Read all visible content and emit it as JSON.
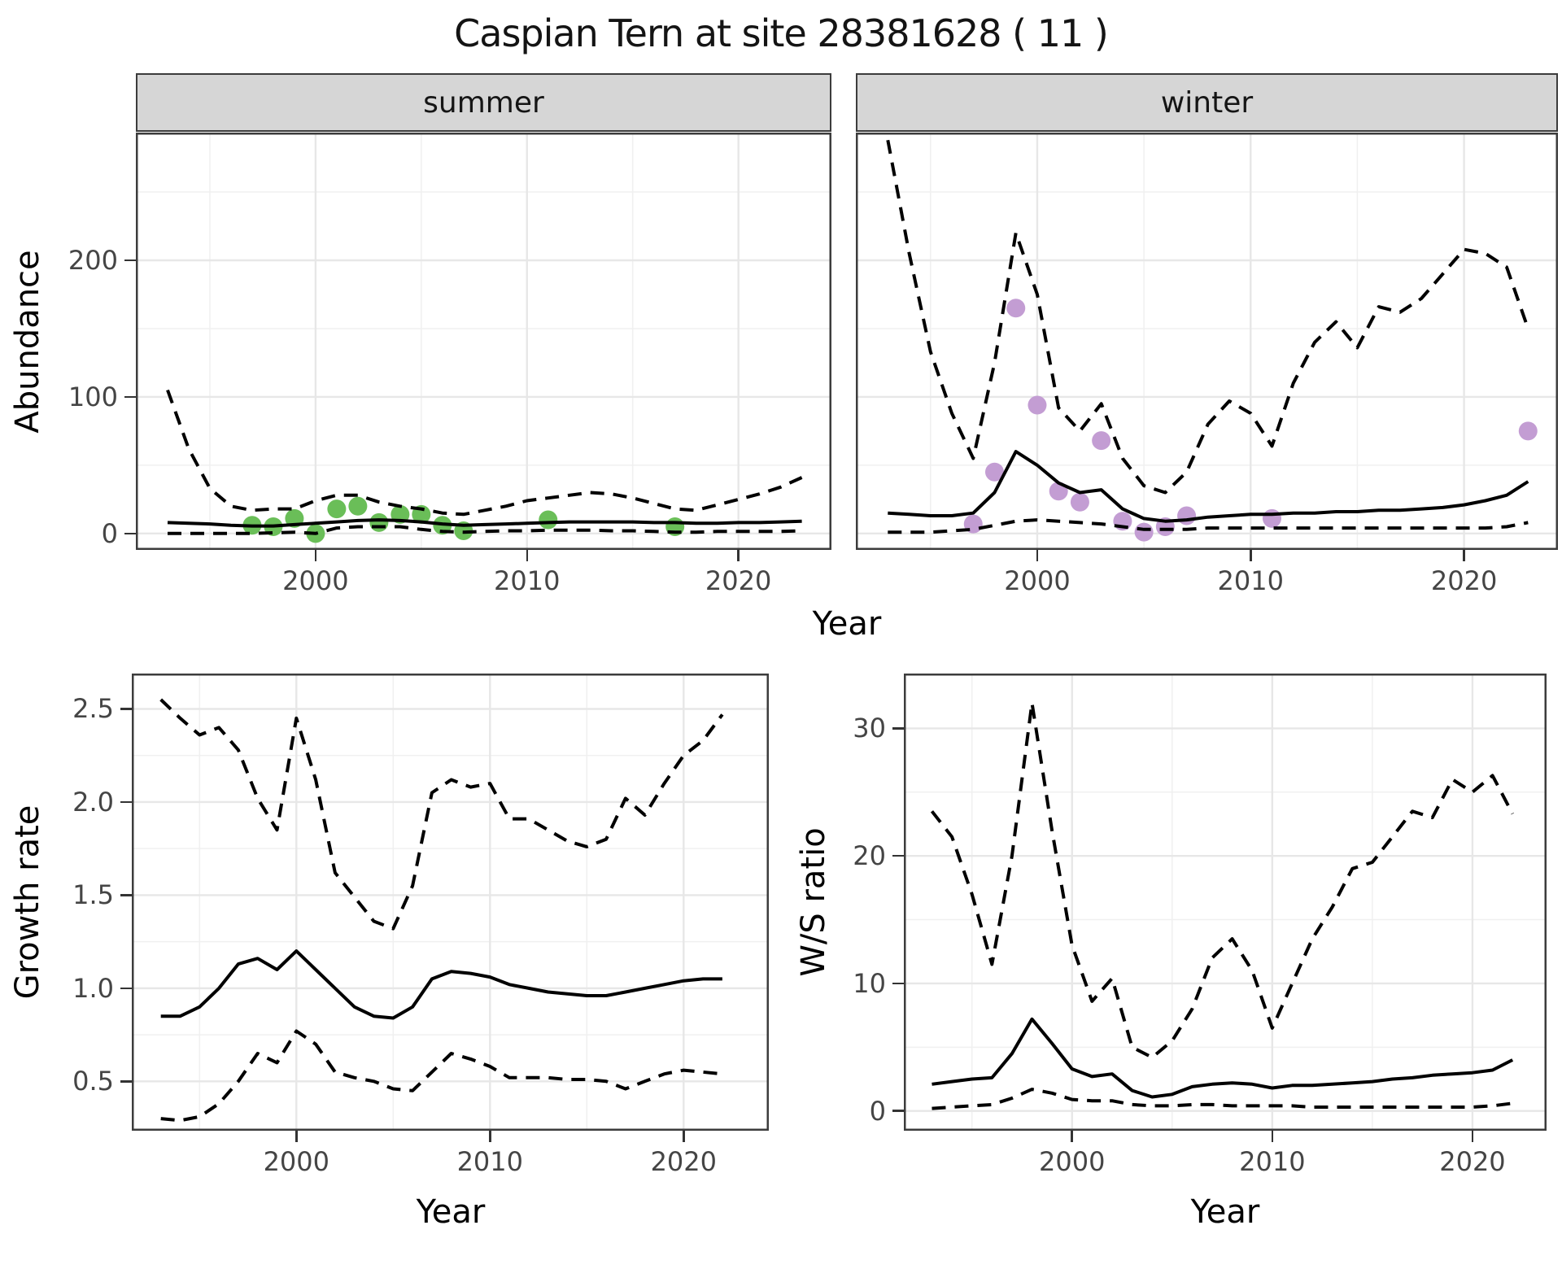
{
  "title": "Caspian Tern at site 28381628 ( 11 )",
  "colors": {
    "summer_points": "#6abe58",
    "winter_points": "#c39dd3",
    "line": "#000000",
    "grid_major": "#e7e7e7",
    "grid_minor": "#f0f0f0",
    "panel_border": "#3c3c3c",
    "strip_bg": "#d6d6d6",
    "tick_text": "#454545"
  },
  "chart_data": [
    {
      "id": "abundance-summer",
      "type": "line",
      "strip": "summer",
      "xlabel": "Year",
      "ylabel": "Abundance",
      "xlim": [
        1991.5,
        2024.4
      ],
      "ylim": [
        -12,
        293.5
      ],
      "x_ticks": [
        2000,
        2010,
        2020
      ],
      "x_tick_labels": [
        "2000",
        "2010",
        "2020"
      ],
      "x_minor": [
        1995,
        2005,
        2015
      ],
      "y_ticks": [
        0,
        100,
        200
      ],
      "y_tick_labels": [
        "0",
        "100",
        "200"
      ],
      "y_minor": [
        50,
        150,
        250
      ],
      "x": [
        1993,
        1994,
        1995,
        1996,
        1997,
        1998,
        1999,
        2000,
        2001,
        2002,
        2003,
        2004,
        2005,
        2006,
        2007,
        2008,
        2009,
        2010,
        2011,
        2012,
        2013,
        2014,
        2015,
        2016,
        2017,
        2018,
        2019,
        2020,
        2021,
        2022,
        2023
      ],
      "series": [
        {
          "name": "upper95_dashed",
          "style": "dashed",
          "values": [
            105,
            62,
            33,
            20,
            17,
            18,
            18,
            24,
            28,
            28,
            23,
            20,
            18,
            15,
            14,
            17,
            20,
            24,
            26,
            28,
            30,
            29,
            26,
            22,
            18,
            17,
            21,
            25,
            29,
            34,
            41
          ]
        },
        {
          "name": "fit_solid",
          "style": "solid",
          "values": [
            8,
            7.5,
            7,
            6,
            5.5,
            5.5,
            6.5,
            7.5,
            8.5,
            9.5,
            10,
            9.5,
            8.5,
            7,
            6,
            6.5,
            7,
            7.5,
            8,
            8.5,
            8.5,
            8.5,
            8.5,
            8,
            8,
            7.5,
            7.5,
            8,
            8,
            8.5,
            9
          ]
        },
        {
          "name": "lower95_dashed",
          "style": "dashed",
          "values": [
            0,
            0,
            0,
            0,
            0,
            0.5,
            1,
            0,
            4,
            5,
            5,
            5,
            3,
            1.5,
            1,
            1.5,
            2,
            2,
            2.5,
            2.5,
            2.5,
            2,
            2,
            1.5,
            1,
            1,
            1.5,
            1.5,
            1.5,
            1.5,
            2
          ]
        }
      ],
      "points": {
        "x": [
          1997,
          1998,
          1999,
          2000,
          2001,
          2002,
          2003,
          2004,
          2005,
          2006,
          2007,
          2011,
          2017
        ],
        "y": [
          6,
          5,
          11,
          0,
          18,
          20,
          8,
          14,
          14,
          6,
          2,
          10,
          5
        ],
        "color": "#6abe58"
      }
    },
    {
      "id": "abundance-winter",
      "type": "line",
      "strip": "winter",
      "xlabel": "Year",
      "ylabel": "Abundance",
      "xlim": [
        1991.5,
        2024.4
      ],
      "ylim": [
        -12,
        293.5
      ],
      "x_ticks": [
        2000,
        2010,
        2020
      ],
      "x_tick_labels": [
        "2000",
        "2010",
        "2020"
      ],
      "x_minor": [
        1995,
        2005,
        2015
      ],
      "y_ticks": [
        0,
        100,
        200
      ],
      "y_tick_labels": [
        "0",
        "100",
        "200"
      ],
      "y_minor": [
        50,
        150,
        250
      ],
      "x": [
        1993,
        1994,
        1995,
        1996,
        1997,
        1998,
        1999,
        2000,
        2001,
        2002,
        2003,
        2004,
        2005,
        2006,
        2007,
        2008,
        2009,
        2010,
        2011,
        2012,
        2013,
        2014,
        2015,
        2016,
        2017,
        2018,
        2019,
        2020,
        2021,
        2022,
        2023
      ],
      "series": [
        {
          "name": "upper95_dashed",
          "style": "dashed",
          "values": [
            288,
            205,
            133,
            88,
            55,
            125,
            220,
            175,
            92,
            75,
            95,
            55,
            35,
            30,
            45,
            80,
            97,
            88,
            64,
            110,
            140,
            155,
            136,
            166,
            162,
            172,
            190,
            208,
            205,
            195,
            150
          ]
        },
        {
          "name": "fit_solid",
          "style": "solid",
          "values": [
            15,
            14,
            13,
            13,
            15,
            30,
            60,
            50,
            37,
            30,
            32,
            18,
            11,
            9,
            10,
            12,
            13,
            14,
            14,
            15,
            15,
            16,
            16,
            17,
            17,
            18,
            19,
            21,
            24,
            28,
            38
          ]
        },
        {
          "name": "lower95_dashed",
          "style": "dashed",
          "values": [
            1,
            1,
            1,
            2,
            3,
            6,
            9,
            10,
            9,
            8,
            7,
            5,
            3,
            3,
            3,
            4,
            4,
            4,
            4,
            4,
            4,
            4,
            4,
            4,
            4,
            4,
            4,
            4,
            4,
            5,
            8
          ]
        }
      ],
      "points": {
        "x": [
          1997,
          1998,
          1999,
          2000,
          2001,
          2002,
          2003,
          2004,
          2005,
          2006,
          2007,
          2011,
          2023
        ],
        "y": [
          7,
          45,
          165,
          94,
          31,
          23,
          68,
          9,
          1,
          5,
          13,
          11,
          75
        ],
        "color": "#c39dd3"
      }
    },
    {
      "id": "growth-rate",
      "type": "line",
      "strip": "",
      "xlabel": "Year",
      "ylabel": "Growth rate",
      "xlim": [
        1991.5,
        2024.4
      ],
      "ylim": [
        0.235,
        2.69
      ],
      "x_ticks": [
        2000,
        2010,
        2020
      ],
      "x_tick_labels": [
        "2000",
        "2010",
        "2020"
      ],
      "x_minor": [
        1995,
        2005,
        2015
      ],
      "y_ticks": [
        0.5,
        1.0,
        1.5,
        2.0,
        2.5
      ],
      "y_tick_labels": [
        "0.5",
        "1.0",
        "1.5",
        "2.0",
        "2.5"
      ],
      "y_minor": [
        0.75,
        1.25,
        1.75,
        2.25
      ],
      "x": [
        1993,
        1994,
        1995,
        1996,
        1997,
        1998,
        1999,
        2000,
        2001,
        2002,
        2003,
        2004,
        2005,
        2006,
        2007,
        2008,
        2009,
        2010,
        2011,
        2012,
        2013,
        2014,
        2015,
        2016,
        2017,
        2018,
        2019,
        2020,
        2021,
        2022
      ],
      "series": [
        {
          "name": "upper95_dashed",
          "style": "dashed",
          "values": [
            2.55,
            2.45,
            2.36,
            2.4,
            2.28,
            2.02,
            1.85,
            2.45,
            2.12,
            1.62,
            1.49,
            1.36,
            1.32,
            1.55,
            2.05,
            2.12,
            2.08,
            2.1,
            1.91,
            1.91,
            1.85,
            1.79,
            1.76,
            1.8,
            2.02,
            1.93,
            2.1,
            2.25,
            2.33,
            2.47
          ]
        },
        {
          "name": "fit_solid",
          "style": "solid",
          "values": [
            0.85,
            0.85,
            0.9,
            1.0,
            1.13,
            1.16,
            1.1,
            1.2,
            1.1,
            1.0,
            0.9,
            0.85,
            0.84,
            0.9,
            1.05,
            1.09,
            1.08,
            1.06,
            1.02,
            1.0,
            0.98,
            0.97,
            0.96,
            0.96,
            0.98,
            1.0,
            1.02,
            1.04,
            1.05,
            1.05
          ]
        },
        {
          "name": "lower95_dashed",
          "style": "dashed",
          "values": [
            0.3,
            0.29,
            0.31,
            0.38,
            0.5,
            0.65,
            0.6,
            0.77,
            0.7,
            0.55,
            0.52,
            0.5,
            0.46,
            0.45,
            0.55,
            0.65,
            0.62,
            0.58,
            0.52,
            0.52,
            0.52,
            0.51,
            0.51,
            0.5,
            0.46,
            0.5,
            0.54,
            0.56,
            0.55,
            0.54
          ]
        }
      ],
      "points": null
    },
    {
      "id": "ws-ratio",
      "type": "line",
      "strip": "",
      "xlabel": "Year",
      "ylabel": "W/S ratio",
      "xlim": [
        1991.6,
        2023.7
      ],
      "ylim": [
        -1.55,
        34.3
      ],
      "x_ticks": [
        2000,
        2010,
        2020
      ],
      "x_tick_labels": [
        "2000",
        "2010",
        "2020"
      ],
      "x_minor": [
        1995,
        2005,
        2015
      ],
      "y_ticks": [
        0,
        10,
        20,
        30
      ],
      "y_tick_labels": [
        "0",
        "10",
        "20",
        "30"
      ],
      "y_minor": [
        5,
        15,
        25
      ],
      "x": [
        1993,
        1994,
        1995,
        1996,
        1997,
        1998,
        1999,
        2000,
        2001,
        2002,
        2003,
        2004,
        2005,
        2006,
        2007,
        2008,
        2009,
        2010,
        2011,
        2012,
        2013,
        2014,
        2015,
        2016,
        2017,
        2018,
        2019,
        2020,
        2021,
        2022
      ],
      "series": [
        {
          "name": "upper95_dashed",
          "style": "dashed",
          "values": [
            23.5,
            21.5,
            17,
            11.5,
            20,
            32,
            22,
            13,
            8.6,
            10.4,
            5,
            4.2,
            5.5,
            8,
            12,
            13.5,
            11,
            6.5,
            10,
            13.5,
            16,
            19,
            19.5,
            21.5,
            23.5,
            23,
            26,
            25,
            26.3,
            23.3
          ]
        },
        {
          "name": "fit_solid",
          "style": "solid",
          "values": [
            2.1,
            2.3,
            2.5,
            2.6,
            4.5,
            7.2,
            5.3,
            3.3,
            2.7,
            2.9,
            1.6,
            1.1,
            1.3,
            1.9,
            2.1,
            2.2,
            2.1,
            1.8,
            2.0,
            2.0,
            2.1,
            2.2,
            2.3,
            2.5,
            2.6,
            2.8,
            2.9,
            3.0,
            3.2,
            4.0
          ]
        },
        {
          "name": "lower95_dashed",
          "style": "dashed",
          "values": [
            0.2,
            0.3,
            0.4,
            0.5,
            1.0,
            1.7,
            1.4,
            0.9,
            0.8,
            0.8,
            0.5,
            0.4,
            0.4,
            0.5,
            0.5,
            0.4,
            0.4,
            0.4,
            0.4,
            0.3,
            0.3,
            0.3,
            0.3,
            0.3,
            0.3,
            0.3,
            0.3,
            0.3,
            0.4,
            0.6
          ]
        }
      ],
      "points": null
    }
  ]
}
